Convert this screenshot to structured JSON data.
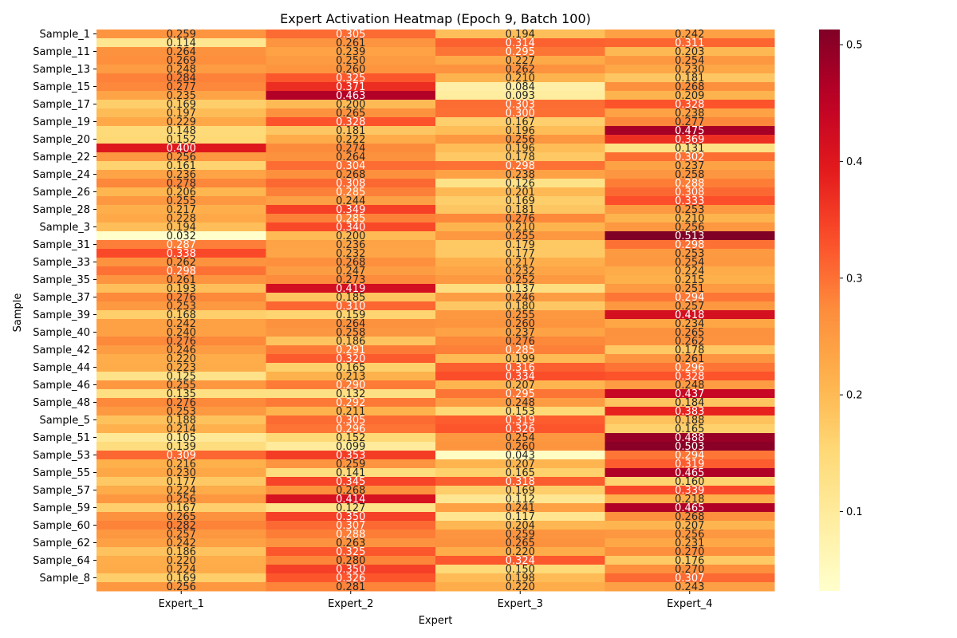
{
  "chart_data": {
    "type": "heatmap",
    "title": "Expert Activation Heatmap (Epoch 9, Batch 100)",
    "xlabel": "Expert",
    "ylabel": "Sample",
    "columns": [
      "Expert_1",
      "Expert_2",
      "Expert_3",
      "Expert_4"
    ],
    "row_tick_labels": [
      "Sample_1",
      "Sample_11",
      "Sample_13",
      "Sample_15",
      "Sample_17",
      "Sample_19",
      "Sample_20",
      "Sample_22",
      "Sample_24",
      "Sample_26",
      "Sample_28",
      "Sample_3",
      "Sample_31",
      "Sample_33",
      "Sample_35",
      "Sample_37",
      "Sample_39",
      "Sample_40",
      "Sample_42",
      "Sample_44",
      "Sample_46",
      "Sample_48",
      "Sample_5",
      "Sample_51",
      "Sample_53",
      "Sample_55",
      "Sample_57",
      "Sample_59",
      "Sample_60",
      "Sample_62",
      "Sample_64",
      "Sample_8"
    ],
    "values": [
      [
        0.259,
        0.305,
        0.194,
        0.242
      ],
      [
        0.114,
        0.261,
        0.314,
        0.311
      ],
      [
        0.264,
        0.239,
        0.295,
        0.203
      ],
      [
        0.269,
        0.25,
        0.227,
        0.254
      ],
      [
        0.248,
        0.26,
        0.262,
        0.23
      ],
      [
        0.284,
        0.325,
        0.21,
        0.181
      ],
      [
        0.277,
        0.371,
        0.084,
        0.268
      ],
      [
        0.235,
        0.463,
        0.093,
        0.209
      ],
      [
        0.169,
        0.2,
        0.303,
        0.328
      ],
      [
        0.197,
        0.265,
        0.3,
        0.238
      ],
      [
        0.229,
        0.328,
        0.167,
        0.277
      ],
      [
        0.148,
        0.181,
        0.196,
        0.475
      ],
      [
        0.152,
        0.222,
        0.256,
        0.369
      ],
      [
        0.4,
        0.274,
        0.196,
        0.131
      ],
      [
        0.256,
        0.264,
        0.178,
        0.302
      ],
      [
        0.161,
        0.304,
        0.298,
        0.237
      ],
      [
        0.236,
        0.268,
        0.238,
        0.258
      ],
      [
        0.278,
        0.308,
        0.126,
        0.288
      ],
      [
        0.206,
        0.285,
        0.201,
        0.308
      ],
      [
        0.255,
        0.244,
        0.169,
        0.333
      ],
      [
        0.217,
        0.349,
        0.181,
        0.253
      ],
      [
        0.228,
        0.285,
        0.276,
        0.21
      ],
      [
        0.194,
        0.34,
        0.21,
        0.256
      ],
      [
        0.032,
        0.2,
        0.255,
        0.513
      ],
      [
        0.287,
        0.236,
        0.179,
        0.298
      ],
      [
        0.338,
        0.232,
        0.177,
        0.253
      ],
      [
        0.262,
        0.268,
        0.217,
        0.254
      ],
      [
        0.298,
        0.247,
        0.232,
        0.224
      ],
      [
        0.261,
        0.273,
        0.252,
        0.215
      ],
      [
        0.193,
        0.419,
        0.137,
        0.251
      ],
      [
        0.276,
        0.185,
        0.246,
        0.294
      ],
      [
        0.253,
        0.31,
        0.18,
        0.257
      ],
      [
        0.168,
        0.159,
        0.255,
        0.418
      ],
      [
        0.242,
        0.264,
        0.26,
        0.234
      ],
      [
        0.24,
        0.258,
        0.237,
        0.265
      ],
      [
        0.276,
        0.186,
        0.276,
        0.262
      ],
      [
        0.246,
        0.291,
        0.285,
        0.178
      ],
      [
        0.22,
        0.32,
        0.199,
        0.261
      ],
      [
        0.223,
        0.165,
        0.316,
        0.296
      ],
      [
        0.125,
        0.213,
        0.334,
        0.328
      ],
      [
        0.255,
        0.29,
        0.207,
        0.248
      ],
      [
        0.135,
        0.132,
        0.295,
        0.437
      ],
      [
        0.276,
        0.292,
        0.248,
        0.184
      ],
      [
        0.253,
        0.211,
        0.153,
        0.383
      ],
      [
        0.188,
        0.305,
        0.319,
        0.188
      ],
      [
        0.214,
        0.296,
        0.326,
        0.165
      ],
      [
        0.105,
        0.152,
        0.254,
        0.488
      ],
      [
        0.139,
        0.099,
        0.26,
        0.503
      ],
      [
        0.309,
        0.353,
        0.043,
        0.294
      ],
      [
        0.216,
        0.259,
        0.207,
        0.319
      ],
      [
        0.23,
        0.141,
        0.165,
        0.465
      ],
      [
        0.177,
        0.345,
        0.318,
        0.16
      ],
      [
        0.224,
        0.268,
        0.169,
        0.339
      ],
      [
        0.256,
        0.414,
        0.112,
        0.218
      ],
      [
        0.167,
        0.127,
        0.241,
        0.465
      ],
      [
        0.265,
        0.35,
        0.117,
        0.268
      ],
      [
        0.282,
        0.307,
        0.204,
        0.207
      ],
      [
        0.257,
        0.288,
        0.259,
        0.256
      ],
      [
        0.242,
        0.263,
        0.265,
        0.231
      ],
      [
        0.186,
        0.325,
        0.22,
        0.27
      ],
      [
        0.22,
        0.28,
        0.324,
        0.176
      ],
      [
        0.224,
        0.35,
        0.15,
        0.27
      ],
      [
        0.169,
        0.326,
        0.198,
        0.307
      ],
      [
        0.256,
        0.281,
        0.22,
        0.243
      ]
    ],
    "colormap": "YlOrRd",
    "vmin": 0.032,
    "vmax": 0.513,
    "colorbar_ticks": [
      0.1,
      0.2,
      0.3,
      0.4,
      0.5
    ],
    "colorbar_tick_labels": [
      "0.1",
      "0.2",
      "0.3",
      "0.4",
      "0.5"
    ]
  }
}
